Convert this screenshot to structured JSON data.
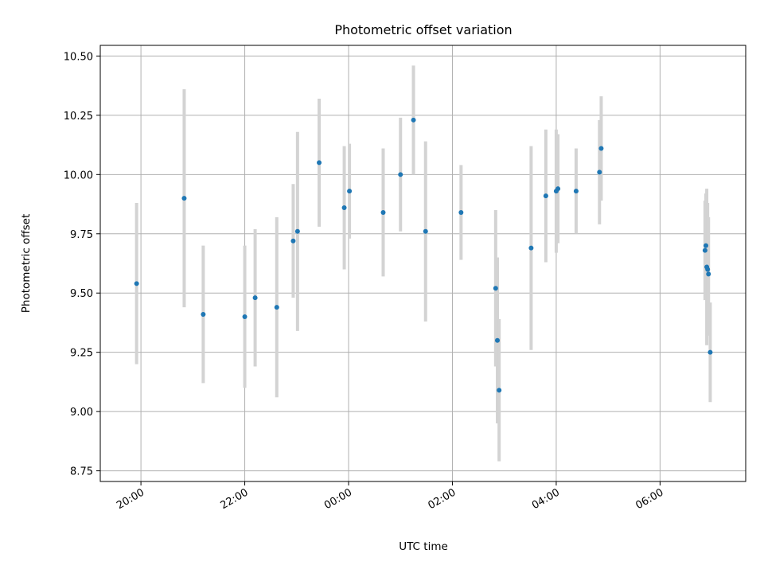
{
  "chart_data": {
    "type": "scatter",
    "title": "Photometric offset variation",
    "xlabel": "UTC time",
    "ylabel": "Photometric offset",
    "grid": true,
    "legend": "none",
    "ylim": [
      8.705,
      10.545
    ],
    "xlim": [
      "19:13",
      "07:39 (+1 day)"
    ],
    "x_ticks": [
      {
        "label": "20:00",
        "time": "20:00"
      },
      {
        "label": "22:00",
        "time": "22:00"
      },
      {
        "label": "00:00",
        "time": "00:00 (+1 day)"
      },
      {
        "label": "02:00",
        "time": "02:00 (+1 day)"
      },
      {
        "label": "04:00",
        "time": "04:00 (+1 day)"
      },
      {
        "label": "06:00",
        "time": "06:00 (+1 day)"
      }
    ],
    "y_ticks": [
      "8.75",
      "9.00",
      "9.25",
      "9.50",
      "9.75",
      "10.00",
      "10.25",
      "10.50"
    ],
    "colors": {
      "points": "#1f77b4",
      "error_bars": "#d3d3d3",
      "grid": "#b0b0b0"
    },
    "points": [
      {
        "x": "19:55",
        "y": 9.54,
        "err": 0.34
      },
      {
        "x": "20:50",
        "y": 9.9,
        "err": 0.46
      },
      {
        "x": "21:12",
        "y": 9.41,
        "err": 0.29
      },
      {
        "x": "22:00",
        "y": 9.4,
        "err": 0.3
      },
      {
        "x": "22:12",
        "y": 9.48,
        "err": 0.29
      },
      {
        "x": "22:37",
        "y": 9.44,
        "err": 0.38
      },
      {
        "x": "22:56",
        "y": 9.72,
        "err": 0.24
      },
      {
        "x": "23:01",
        "y": 9.76,
        "err": 0.42
      },
      {
        "x": "23:26",
        "y": 10.05,
        "err": 0.27
      },
      {
        "x": "23:55",
        "y": 9.86,
        "err": 0.26
      },
      {
        "x": "00:01 (+1 day)",
        "y": 9.93,
        "err": 0.2
      },
      {
        "x": "00:40 (+1 day)",
        "y": 9.84,
        "err": 0.27
      },
      {
        "x": "01:00 (+1 day)",
        "y": 10.0,
        "err": 0.24
      },
      {
        "x": "01:15 (+1 day)",
        "y": 10.23,
        "err": 0.23
      },
      {
        "x": "01:29 (+1 day)",
        "y": 9.76,
        "err": 0.38
      },
      {
        "x": "02:10 (+1 day)",
        "y": 9.84,
        "err": 0.2
      },
      {
        "x": "02:50 (+1 day)",
        "y": 9.52,
        "err": 0.33
      },
      {
        "x": "02:52 (+1 day)",
        "y": 9.3,
        "err": 0.35
      },
      {
        "x": "02:54 (+1 day)",
        "y": 9.09,
        "err": 0.3
      },
      {
        "x": "03:31 (+1 day)",
        "y": 9.69,
        "err": 0.43
      },
      {
        "x": "03:48 (+1 day)",
        "y": 9.91,
        "err": 0.28
      },
      {
        "x": "04:00 (+1 day)",
        "y": 9.93,
        "err": 0.26
      },
      {
        "x": "04:02 (+1 day)",
        "y": 9.94,
        "err": 0.23
      },
      {
        "x": "04:23 (+1 day)",
        "y": 9.93,
        "err": 0.18
      },
      {
        "x": "04:50 (+1 day)",
        "y": 10.01,
        "err": 0.22
      },
      {
        "x": "04:52 (+1 day)",
        "y": 10.11,
        "err": 0.22
      },
      {
        "x": "06:52 (+1 day)",
        "y": 9.68,
        "err": 0.21
      },
      {
        "x": "06:53 (+1 day)",
        "y": 9.7,
        "err": 0.22
      },
      {
        "x": "06:54 (+1 day)",
        "y": 9.61,
        "err": 0.33
      },
      {
        "x": "06:55 (+1 day)",
        "y": 9.6,
        "err": 0.28
      },
      {
        "x": "06:56 (+1 day)",
        "y": 9.58,
        "err": 0.24
      },
      {
        "x": "06:58 (+1 day)",
        "y": 9.25,
        "err": 0.21
      }
    ]
  }
}
